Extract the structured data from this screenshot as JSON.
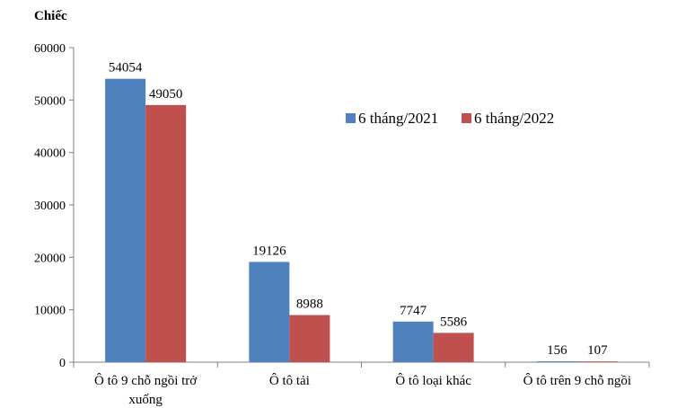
{
  "chart_data": {
    "type": "bar",
    "unit_label": "Chiếc",
    "categories": [
      [
        "Ô tô 9 chỗ ngồi trở",
        "xuống"
      ],
      [
        "Ô tô tải"
      ],
      [
        "Ô tô loại khác"
      ],
      [
        "Ô tô trên 9 chỗ ngồi"
      ]
    ],
    "series": [
      {
        "name": "6 tháng/2021",
        "color": "#4f81bd",
        "values": [
          54054,
          19126,
          7747,
          156
        ]
      },
      {
        "name": "6 tháng/2022",
        "color": "#c0504d",
        "values": [
          49050,
          8988,
          5586,
          107
        ]
      }
    ],
    "yticks": [
      0,
      10000,
      20000,
      30000,
      40000,
      50000,
      60000
    ],
    "ylim": [
      0,
      60000
    ],
    "grid": false,
    "legend_position": "upper-right"
  }
}
